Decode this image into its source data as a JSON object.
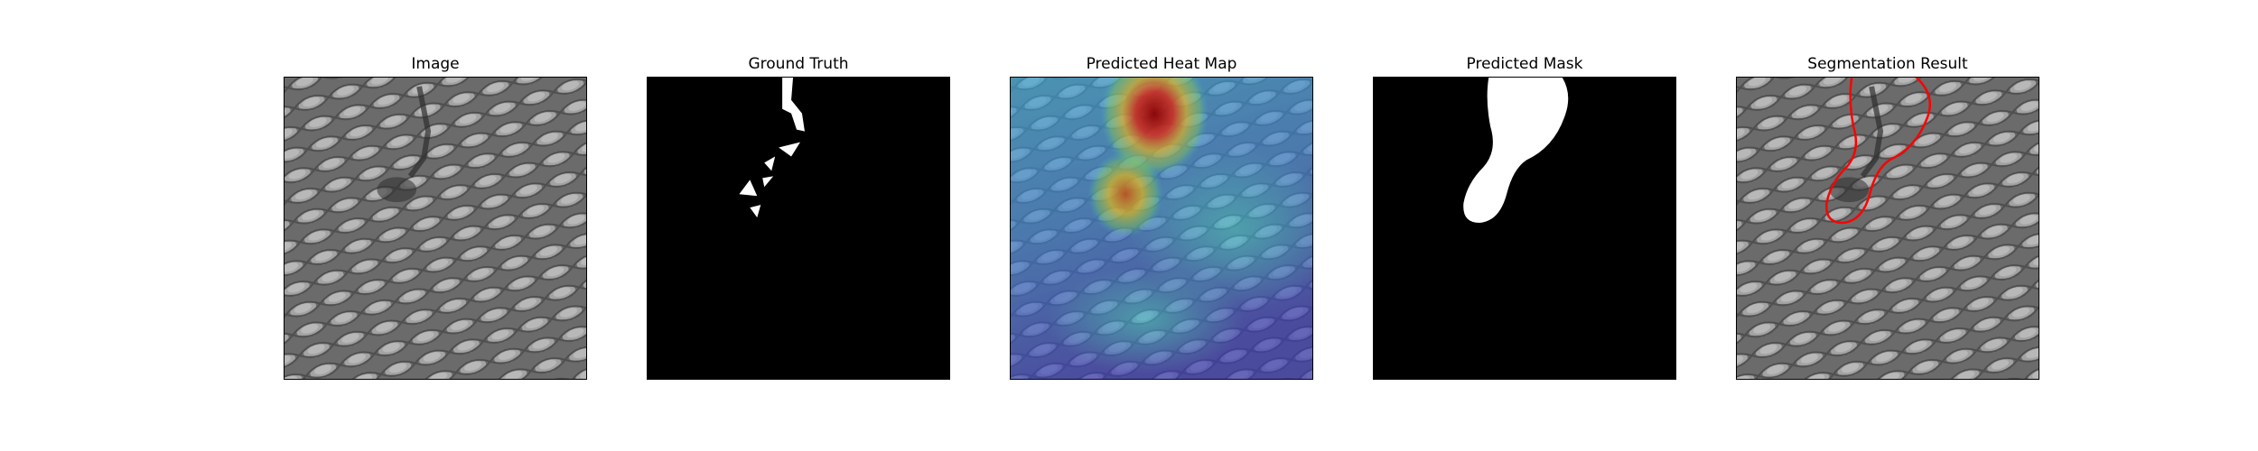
{
  "panels": [
    {
      "id": "image",
      "title": "Image"
    },
    {
      "id": "ground-truth",
      "title": "Ground Truth"
    },
    {
      "id": "heatmap",
      "title": "Predicted Heat Map"
    },
    {
      "id": "mask",
      "title": "Predicted Mask"
    },
    {
      "id": "segmentation",
      "title": "Segmentation Result"
    }
  ],
  "colors": {
    "background": "#ffffff",
    "mask_fill": "#ffffff",
    "mask_background": "#000000",
    "contour": "#ff0000",
    "texture_light": "#9a9a9a",
    "texture_dark": "#555555"
  }
}
